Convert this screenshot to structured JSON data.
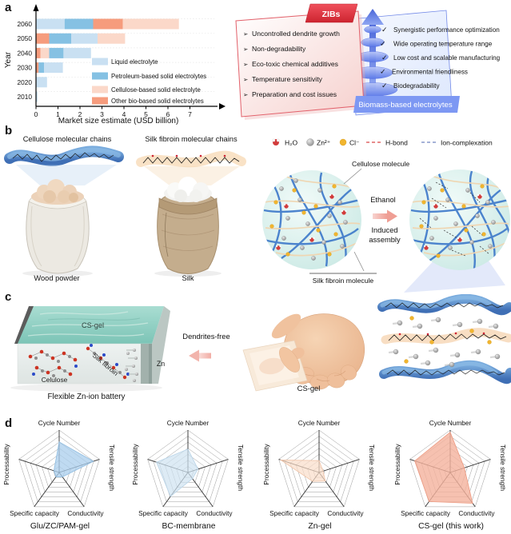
{
  "panel_labels": {
    "a": "a",
    "b": "b",
    "c": "c",
    "d": "d"
  },
  "chart_data": [
    {
      "type": "bar",
      "orientation": "horizontal-stacked",
      "xlabel": "Market size estimate (USD billion)",
      "ylabel": "Year",
      "xlim": [
        0,
        7
      ],
      "xticks": [
        0,
        1,
        2,
        3,
        4,
        5,
        6,
        7
      ],
      "legend": [
        {
          "key": "liquid",
          "label": "Liquid electrolyte",
          "color": "#c9e0f2"
        },
        {
          "key": "petroleum",
          "label": "Petroleum-based solid electrolytes",
          "color": "#85c1e3"
        },
        {
          "key": "cellulose",
          "label": "Cellulose-based solid electrolyte",
          "color": "#fbd8c9"
        },
        {
          "key": "other_bio",
          "label": "Other bio-based solid electrolytes",
          "color": "#f69c7d"
        }
      ],
      "rows": [
        {
          "year": "2060",
          "segments": [
            {
              "key": "liquid",
              "value": 1.3
            },
            {
              "key": "petroleum",
              "value": 1.3
            },
            {
              "key": "other_bio",
              "value": 1.35
            },
            {
              "key": "cellulose",
              "value": 2.55
            }
          ]
        },
        {
          "year": "2050",
          "segments": [
            {
              "key": "other_bio",
              "value": 0.6
            },
            {
              "key": "petroleum",
              "value": 1.0
            },
            {
              "key": "liquid",
              "value": 1.2
            },
            {
              "key": "cellulose",
              "value": 1.25
            }
          ]
        },
        {
          "year": "2040",
          "segments": [
            {
              "key": "other_bio",
              "value": 0.2
            },
            {
              "key": "cellulose",
              "value": 0.4
            },
            {
              "key": "petroleum",
              "value": 0.65
            },
            {
              "key": "liquid",
              "value": 1.25
            }
          ]
        },
        {
          "year": "2030",
          "segments": [
            {
              "key": "other_bio",
              "value": 0.12
            },
            {
              "key": "petroleum",
              "value": 0.25
            },
            {
              "key": "liquid",
              "value": 0.85
            }
          ]
        },
        {
          "year": "2020",
          "segments": [
            {
              "key": "liquid",
              "value": 0.5
            }
          ]
        },
        {
          "year": "2010",
          "segments": [
            {
              "key": "liquid",
              "value": 0.07
            }
          ]
        }
      ]
    },
    {
      "type": "radar",
      "axes": [
        "Cycle Number",
        "Tensile strength",
        "Conductivity",
        "Specific capacity",
        "Processability"
      ],
      "rings": 7,
      "scale": [
        0,
        1
      ],
      "charts": [
        {
          "title": "Glu/ZC/PAM-gel",
          "fill": "#a9cdec",
          "stroke": "#8fbce0",
          "fill_opacity": 0.75,
          "values": [
            0.72,
            0.85,
            0.13,
            0.13,
            0.13
          ]
        },
        {
          "title": "BC-membrane",
          "fill": "#cfe2f1",
          "stroke": "#b9d4e8",
          "fill_opacity": 0.7,
          "values": [
            0.55,
            0.25,
            0.18,
            0.7,
            0.78
          ]
        },
        {
          "title": "Zn-gel",
          "fill": "#f9ddc9",
          "stroke": "#f0c4a8",
          "fill_opacity": 0.7,
          "values": [
            0.28,
            0.1,
            0.25,
            0.26,
            0.95
          ]
        },
        {
          "title": "CS-gel (this work)",
          "fill": "#f4b29c",
          "stroke": "#ee9b82",
          "fill_opacity": 0.8,
          "values": [
            0.95,
            0.35,
            0.9,
            0.85,
            0.88
          ]
        }
      ]
    }
  ],
  "zibs": {
    "tag": "ZIBs",
    "bullet": "➢",
    "issues": [
      "Uncontrolled dendrite growth",
      "Non-degradability",
      "Eco-toxic chemical additives",
      "Temperature sensitivity",
      "Preparation and cost issues"
    ]
  },
  "biomass": {
    "banner": "Biomass-based electrolytes",
    "check": "✓",
    "benefits": [
      "Synergistic performance optimization",
      "Wide operating temperature range",
      "Low cost and scalable manufacturing",
      "Environmental friendliness",
      "Biodegradability"
    ]
  },
  "panel_b": {
    "cellulose_title": "Cellulose molecular chains",
    "silk_title": "Silk fibroin molecular chains",
    "wood_label": "Wood powder",
    "silk_label": "Silk",
    "legend": {
      "h2o": "H₂O",
      "zn": "Zn²⁺",
      "cl": "Cl⁻",
      "hbond": "H-bond",
      "ion": "Ion-complexation"
    },
    "cellulose_molecule": "Cellulose molecule",
    "ethanol": "Ethanol",
    "induced_line1": "Induced",
    "induced_line2": "assembly",
    "silk_molecule": "Silk fibroin molecule"
  },
  "panel_c": {
    "gel_top": "CS-gel",
    "cellulose": "Celulose",
    "silk": "Silk fibroin",
    "zn": "Zn",
    "battery_label": "Flexible Zn-ion battery",
    "dendrites": "Dendrites-free",
    "gel_label": "CS-gel"
  }
}
